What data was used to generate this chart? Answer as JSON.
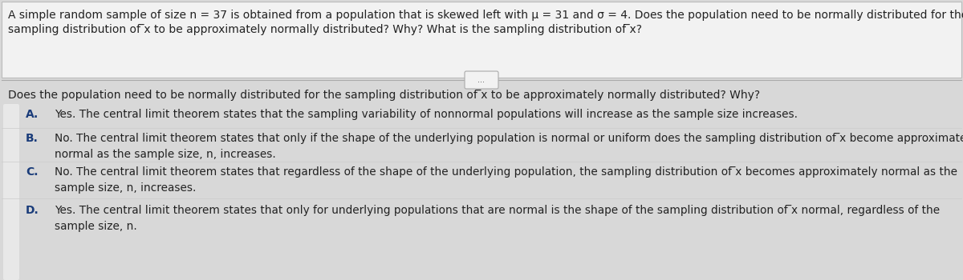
{
  "bg_color": "#d8d8d8",
  "header_bg": "#f0f0f0",
  "body_bg": "#d8d8d8",
  "header_text_line1": "A simple random sample of size n = 37 is obtained from a population that is skewed left with μ = 31 and σ = 4. Does the population need to be normally distributed for the",
  "header_text_line2": "sampling distribution of ̅x to be approximately normally distributed? Why? What is the sampling distribution of ̅x?",
  "divider_button_text": "...",
  "section_question": "Does the population need to be normally distributed for the sampling distribution of ̅x to be approximately normally distributed? Why?",
  "options": [
    {
      "label": "A.",
      "text": "Yes. The central limit theorem states that the sampling variability of nonnormal populations will increase as the sample size increases."
    },
    {
      "label": "B.",
      "text": "No. The central limit theorem states that only if the shape of the underlying population is normal or uniform does the sampling distribution of ̅x become approximately\nnormal as the sample size, n, increases."
    },
    {
      "label": "C.",
      "text": "No. The central limit theorem states that regardless of the shape of the underlying population, the sampling distribution of ̅x becomes approximately normal as the\nsample size, n, increases."
    },
    {
      "label": "D.",
      "text": "Yes. The central limit theorem states that only for underlying populations that are normal is the shape of the sampling distribution of ̅x normal, regardless of the\nsample size, n."
    }
  ],
  "label_color": "#1a3c7a",
  "text_color": "#222222",
  "header_fontsize": 10.0,
  "question_fontsize": 10.0,
  "option_fontsize": 9.8,
  "label_fontsize": 10.0
}
